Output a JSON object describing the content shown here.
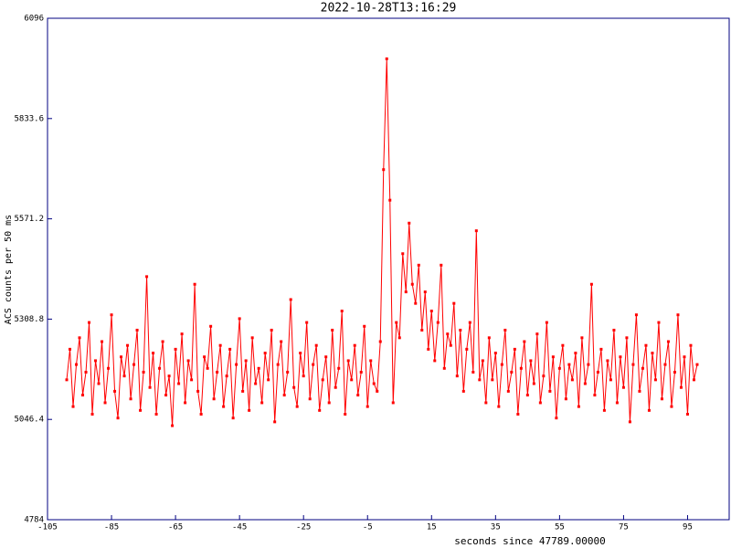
{
  "chart_data": {
    "type": "line",
    "title": "2022-10-28T13:16:29",
    "x_label": "seconds since 47789.00000",
    "y_label": "ACS counts per 50 ms",
    "xlim": [
      -105,
      108
    ],
    "ylim": [
      4784,
      6096
    ],
    "xticks": [
      -105,
      -85,
      -65,
      -45,
      -25,
      -5,
      15,
      35,
      55,
      75,
      95
    ],
    "yticks": [
      4784,
      5046.4,
      5308.8,
      5571.2,
      5833.6,
      6096
    ],
    "x": [
      -99,
      -98,
      -97,
      -96,
      -95,
      -94,
      -93,
      -92,
      -91,
      -90,
      -89,
      -88,
      -87,
      -86,
      -85,
      -84,
      -83,
      -82,
      -81,
      -80,
      -79,
      -78,
      -77,
      -76,
      -75,
      -74,
      -73,
      -72,
      -71,
      -70,
      -69,
      -68,
      -67,
      -66,
      -65,
      -64,
      -63,
      -62,
      -61,
      -60,
      -59,
      -58,
      -57,
      -56,
      -55,
      -54,
      -53,
      -52,
      -51,
      -50,
      -49,
      -48,
      -47,
      -46,
      -45,
      -44,
      -43,
      -42,
      -41,
      -40,
      -39,
      -38,
      -37,
      -36,
      -35,
      -34,
      -33,
      -32,
      -31,
      -30,
      -29,
      -28,
      -27,
      -26,
      -25,
      -24,
      -23,
      -22,
      -21,
      -20,
      -19,
      -18,
      -17,
      -16,
      -15,
      -14,
      -13,
      -12,
      -11,
      -10,
      -9,
      -8,
      -7,
      -6,
      -5,
      -4,
      -3,
      -2,
      -1,
      0,
      1,
      2,
      3,
      4,
      5,
      6,
      7,
      8,
      9,
      10,
      11,
      12,
      13,
      14,
      15,
      16,
      17,
      18,
      19,
      20,
      21,
      22,
      23,
      24,
      25,
      26,
      27,
      28,
      29,
      30,
      31,
      32,
      33,
      34,
      35,
      36,
      37,
      38,
      39,
      40,
      41,
      42,
      43,
      44,
      45,
      46,
      47,
      48,
      49,
      50,
      51,
      52,
      53,
      54,
      55,
      56,
      57,
      58,
      59,
      60,
      61,
      62,
      63,
      64,
      65,
      66,
      67,
      68,
      69,
      70,
      71,
      72,
      73,
      74,
      75,
      76,
      77,
      78,
      79,
      80,
      81,
      82,
      83,
      84,
      85,
      86,
      87,
      88,
      89,
      90,
      91,
      92,
      93,
      94,
      95,
      96,
      97,
      98
    ],
    "series": [
      {
        "color": "#ff0000",
        "values": [
          5150,
          5230,
          5080,
          5190,
          5260,
          5110,
          5170,
          5300,
          5060,
          5200,
          5140,
          5250,
          5090,
          5180,
          5320,
          5120,
          5050,
          5210,
          5160,
          5240,
          5100,
          5190,
          5280,
          5070,
          5170,
          5420,
          5130,
          5220,
          5060,
          5180,
          5250,
          5110,
          5160,
          5030,
          5230,
          5140,
          5270,
          5090,
          5200,
          5150,
          5400,
          5120,
          5060,
          5210,
          5180,
          5290,
          5100,
          5170,
          5240,
          5080,
          5160,
          5230,
          5050,
          5190,
          5310,
          5120,
          5200,
          5070,
          5260,
          5140,
          5180,
          5090,
          5220,
          5150,
          5280,
          5040,
          5190,
          5250,
          5110,
          5170,
          5360,
          5130,
          5080,
          5220,
          5160,
          5300,
          5100,
          5190,
          5240,
          5070,
          5150,
          5210,
          5090,
          5280,
          5130,
          5180,
          5330,
          5060,
          5200,
          5150,
          5240,
          5110,
          5170,
          5290,
          5080,
          5200,
          5140,
          5120,
          5250,
          5700,
          5990,
          5620,
          5090,
          5300,
          5260,
          5480,
          5380,
          5560,
          5400,
          5350,
          5450,
          5280,
          5380,
          5230,
          5330,
          5200,
          5300,
          5450,
          5180,
          5270,
          5240,
          5350,
          5160,
          5280,
          5120,
          5230,
          5300,
          5170,
          5540,
          5150,
          5200,
          5090,
          5260,
          5150,
          5220,
          5080,
          5190,
          5280,
          5120,
          5170,
          5230,
          5060,
          5180,
          5250,
          5110,
          5200,
          5140,
          5270,
          5090,
          5160,
          5300,
          5120,
          5210,
          5050,
          5180,
          5240,
          5100,
          5190,
          5150,
          5220,
          5080,
          5260,
          5140,
          5190,
          5400,
          5110,
          5170,
          5230,
          5070,
          5200,
          5150,
          5280,
          5090,
          5210,
          5130,
          5260,
          5040,
          5190,
          5320,
          5120,
          5180,
          5240,
          5070,
          5220,
          5150,
          5300,
          5100,
          5190,
          5250,
          5080,
          5170,
          5320,
          5130,
          5210,
          5060,
          5240,
          5150,
          5190
        ]
      }
    ]
  }
}
